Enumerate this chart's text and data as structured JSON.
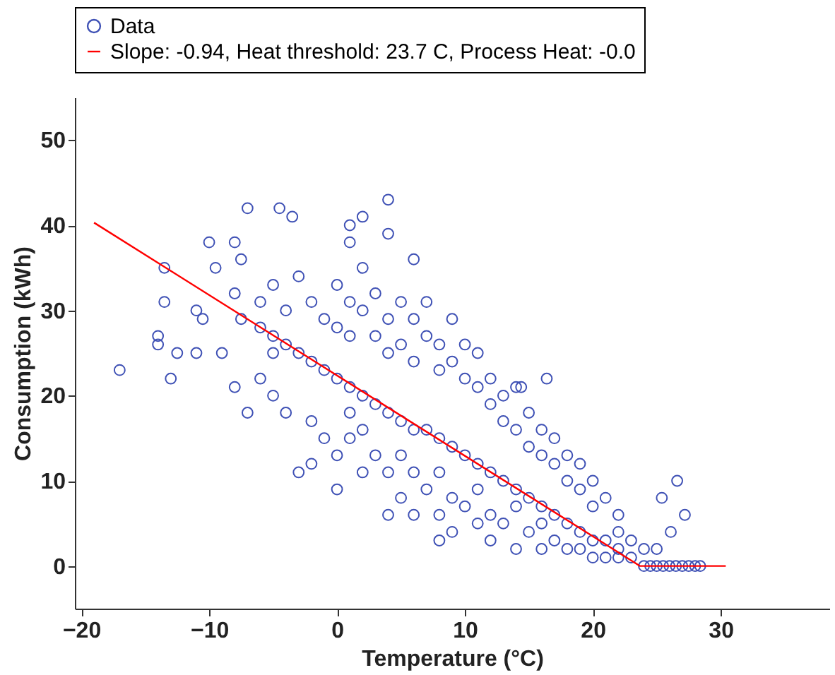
{
  "chart_data": {
    "type": "scatter",
    "xlabel": "Temperature (°C)",
    "ylabel": "Consumption (kWh)",
    "xlim": [
      -20.5,
      38.5
    ],
    "ylim": [
      -5,
      55
    ],
    "xticks": [
      -20,
      -10,
      0,
      10,
      20,
      30
    ],
    "yticks": [
      0,
      10,
      20,
      30,
      40,
      50
    ],
    "grid": false,
    "legend": "top",
    "series": [
      {
        "name": "Data",
        "marker": "circle",
        "color": "#3f51b5",
        "x": [
          -6,
          -5,
          -4,
          -3,
          -2,
          -1,
          0,
          1,
          2,
          3,
          4,
          5,
          6,
          7,
          8,
          9,
          10,
          11,
          12,
          13,
          14,
          15,
          16,
          17,
          18,
          19,
          20,
          21,
          22,
          23,
          24,
          24.5,
          25,
          25.5,
          26,
          26.5,
          27,
          27.5,
          28,
          28.4,
          -6,
          -5,
          -4,
          -3,
          -2,
          -1,
          0,
          0,
          1,
          1,
          2,
          2,
          3,
          3,
          4,
          4,
          5,
          5,
          6,
          6,
          7,
          7,
          8,
          8,
          9,
          9,
          10,
          10,
          11,
          11,
          12,
          12,
          13,
          13,
          14,
          14,
          15,
          15,
          16,
          16,
          17,
          17,
          18,
          18,
          19,
          19,
          20,
          20,
          21,
          22,
          22,
          23,
          24,
          25,
          -5,
          -4,
          -3,
          -2,
          -2,
          -1,
          0,
          0,
          1,
          1,
          2,
          2,
          3,
          4,
          4,
          5,
          5,
          6,
          6,
          7,
          8,
          8,
          9,
          9,
          10,
          11,
          11,
          12,
          12,
          13,
          14,
          14,
          15,
          16,
          16,
          17,
          18,
          19,
          20,
          21,
          22,
          8,
          -17,
          -13.5,
          -13.5,
          -14,
          -14,
          -13,
          -12.5,
          -11,
          -10,
          -9.5,
          -8,
          -7.5,
          -11,
          -10.5,
          -7,
          -4.5,
          -3.5,
          -8,
          -7.5,
          -9,
          -8,
          -7,
          1,
          1,
          2,
          4,
          4,
          6,
          14.4,
          16.4,
          26.6,
          25.4,
          27.2,
          26.1,
          -6,
          -5
        ],
        "values": [
          28,
          27,
          26,
          25,
          24,
          23,
          22,
          21,
          20,
          19,
          18,
          17,
          16,
          16,
          15,
          14,
          13,
          12,
          11,
          10,
          9,
          8,
          7,
          6,
          5,
          4,
          3,
          3,
          2,
          1,
          0,
          0,
          0,
          0,
          0,
          0,
          0,
          0,
          0,
          0,
          31,
          33,
          30,
          34,
          31,
          29,
          33,
          28,
          31,
          27,
          30,
          35,
          27,
          32,
          29,
          25,
          31,
          26,
          29,
          24,
          27,
          31,
          26,
          23,
          29,
          24,
          22,
          26,
          25,
          21,
          22,
          19,
          20,
          17,
          21,
          16,
          18,
          14,
          16,
          13,
          15,
          12,
          13,
          10,
          12,
          9,
          10,
          7,
          8,
          6,
          4,
          3,
          2,
          2,
          20,
          18,
          11,
          17,
          12,
          15,
          9,
          13,
          18,
          15,
          16,
          11,
          13,
          11,
          6,
          8,
          13,
          11,
          6,
          9,
          11,
          6,
          8,
          4,
          7,
          5,
          9,
          6,
          3,
          5,
          2,
          7,
          4,
          2,
          5,
          3,
          2,
          2,
          1,
          1,
          1,
          3,
          23,
          35,
          31,
          27,
          26,
          22,
          25,
          25,
          38,
          35,
          38,
          36,
          30,
          29,
          42,
          42,
          41,
          32,
          29,
          25,
          21,
          18,
          40,
          38,
          41,
          43,
          39,
          36,
          21,
          22,
          10,
          8,
          6,
          4,
          22,
          25
        ]
      },
      {
        "name": "Slope: -0.94, Heat threshold: 23.7 C, Process Heat: -0.0",
        "type": "line",
        "line_style": "solid",
        "color": "#ff0000",
        "x": [
          -19,
          23.7,
          30.4
        ],
        "values": [
          40.3,
          0,
          0
        ]
      }
    ]
  }
}
